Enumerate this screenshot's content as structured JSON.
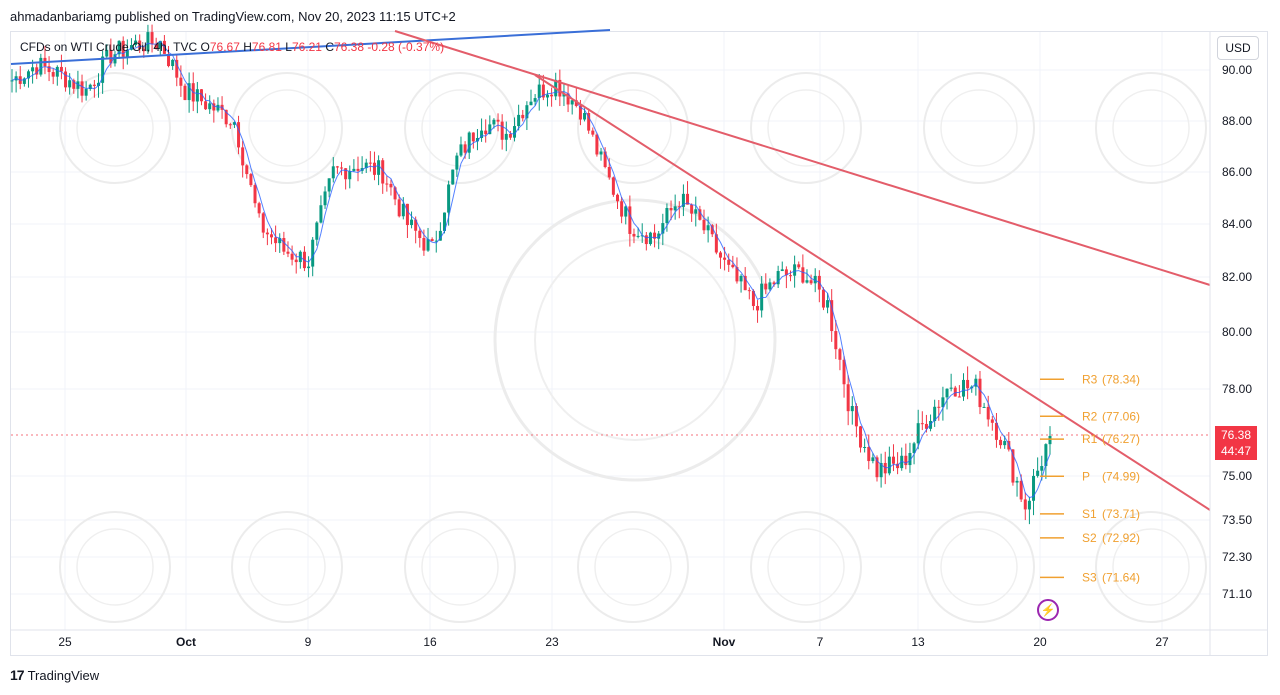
{
  "header": {
    "publisher": "ahmadanbariamg published on TradingView.com, Nov 20, 2023 11:15 UTC+2"
  },
  "legend": {
    "symbol": "CFDs on WTI Crude Oil, 4h, TVC",
    "open_label": "O",
    "open": "76.67",
    "high_label": "H",
    "high": "76.81",
    "low_label": "L",
    "low": "76.21",
    "close_label": "C",
    "close": "76.38",
    "change": "-0.28 (-0.37%)"
  },
  "currency_button": "USD",
  "price_badge": {
    "price": "76.38",
    "countdown": "44:47",
    "color": "#f23645"
  },
  "footer": {
    "logo": "17",
    "brand": "TradingView"
  },
  "chart_data": {
    "type": "line",
    "y_axis_ticks": [
      "90.00",
      "88.00",
      "86.00",
      "84.00",
      "82.00",
      "80.00",
      "78.00",
      "75.00",
      "73.50",
      "72.30",
      "71.10"
    ],
    "x_axis_ticks": [
      "25",
      "Oct",
      "9",
      "16",
      "23",
      "Nov",
      "7",
      "13",
      "20",
      "27"
    ],
    "price_series": [
      [
        "Sep 21",
        89.6
      ],
      [
        "Sep 22",
        90.2
      ],
      [
        "Sep 25",
        89.8
      ],
      [
        "Sep 26",
        89.2
      ],
      [
        "Sep 27",
        90.6
      ],
      [
        "Sep 28",
        91.0
      ],
      [
        "Sep 29",
        91.1
      ],
      [
        "Oct 2",
        89.2
      ],
      [
        "Oct 3",
        88.6
      ],
      [
        "Oct 4",
        88.0
      ],
      [
        "Oct 5",
        84.0
      ],
      [
        "Oct 6",
        83.0
      ],
      [
        "Oct 9",
        82.6
      ],
      [
        "Oct 10",
        86.0
      ],
      [
        "Oct 11",
        86.3
      ],
      [
        "Oct 12",
        86.0
      ],
      [
        "Oct 13",
        84.0
      ],
      [
        "Oct 16",
        83.0
      ],
      [
        "Oct 17",
        86.5
      ],
      [
        "Oct 18",
        88.0
      ],
      [
        "Oct 19",
        87.5
      ],
      [
        "Oct 20",
        89.0
      ],
      [
        "Oct 23",
        89.5
      ],
      [
        "Oct 24",
        88.5
      ],
      [
        "Oct 25",
        86.0
      ],
      [
        "Oct 26",
        84.0
      ],
      [
        "Oct 27",
        83.5
      ],
      [
        "Oct 30",
        85.0
      ],
      [
        "Oct 31",
        83.8
      ],
      [
        "Nov 1",
        82.2
      ],
      [
        "Nov 2",
        81.0
      ],
      [
        "Nov 3",
        82.0
      ],
      [
        "Nov 6",
        82.2
      ],
      [
        "Nov 7",
        81.0
      ],
      [
        "Nov 8",
        77.0
      ],
      [
        "Nov 9",
        75.2
      ],
      [
        "Nov 10",
        75.4
      ],
      [
        "Nov 13",
        77.0
      ],
      [
        "Nov 14",
        78.2
      ],
      [
        "Nov 15",
        78.0
      ],
      [
        "Nov 16",
        76.4
      ],
      [
        "Nov 17",
        74.0
      ],
      [
        "Nov 20",
        76.38
      ]
    ],
    "pivot_levels": [
      {
        "label": "R3",
        "value": "78.34"
      },
      {
        "label": "R2",
        "value": "77.06"
      },
      {
        "label": "R1",
        "value": "76.27"
      },
      {
        "label": "P",
        "value": "74.99"
      },
      {
        "label": "S1",
        "value": "73.71"
      },
      {
        "label": "S2",
        "value": "72.92"
      },
      {
        "label": "S3",
        "value": "71.64"
      }
    ],
    "colors": {
      "up": "#089981",
      "down": "#f23645",
      "ma": "#2962ff",
      "trendline": "#e35d6a",
      "blue_trendline": "#3a6fd8",
      "pivot": "#f0a030",
      "grid": "#f0f3fa",
      "axis_text": "#131722"
    }
  }
}
